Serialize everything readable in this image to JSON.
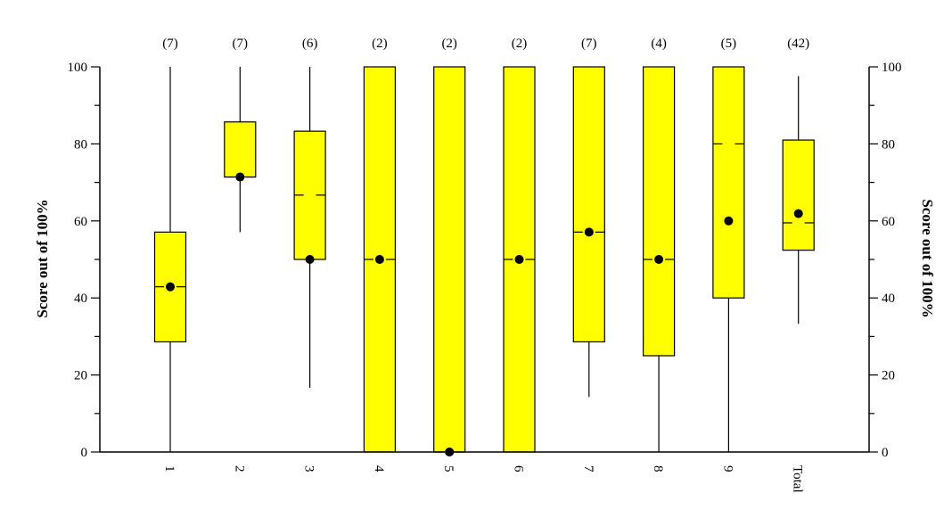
{
  "chart_data": {
    "type": "boxplot",
    "title": "",
    "xlabel": "",
    "ylabel": "Score out of 100%",
    "ylabel_right": "Score out of 100%",
    "ylim": [
      0,
      100
    ],
    "yticks": [
      0,
      20,
      40,
      60,
      80,
      100
    ],
    "grid": false,
    "box_color": "#ffff00",
    "categories": [
      "1",
      "2",
      "3",
      "4",
      "5",
      "6",
      "7",
      "8",
      "9",
      "Total"
    ],
    "counts": [
      "(7)",
      "(7)",
      "(6)",
      "(2)",
      "(2)",
      "(2)",
      "(7)",
      "(4)",
      "(5)",
      "(42)"
    ],
    "boxes": [
      {
        "category": "1",
        "min": 0,
        "q1": 28.6,
        "median": 42.9,
        "q3": 57.1,
        "max": 100,
        "mean": 42.9
      },
      {
        "category": "2",
        "min": 57.1,
        "q1": 71.4,
        "median": 71.4,
        "q3": 85.7,
        "max": 100,
        "mean": 71.4
      },
      {
        "category": "3",
        "min": 16.7,
        "q1": 50,
        "median": 66.7,
        "q3": 83.3,
        "max": 100,
        "mean": 50
      },
      {
        "category": "4",
        "min": 0,
        "q1": 0,
        "median": 50,
        "q3": 100,
        "max": 100,
        "mean": 50
      },
      {
        "category": "5",
        "min": 0,
        "q1": 0,
        "median": 0,
        "q3": 100,
        "max": 100,
        "mean": 0
      },
      {
        "category": "6",
        "min": 0,
        "q1": 0,
        "median": 50,
        "q3": 100,
        "max": 100,
        "mean": 50
      },
      {
        "category": "7",
        "min": 14.3,
        "q1": 28.6,
        "median": 57.1,
        "q3": 100,
        "max": 100,
        "mean": 57.1
      },
      {
        "category": "8",
        "min": 0,
        "q1": 25,
        "median": 50,
        "q3": 100,
        "max": 100,
        "mean": 50
      },
      {
        "category": "9",
        "min": 0,
        "q1": 40,
        "median": 80,
        "q3": 100,
        "max": 100,
        "mean": 60
      },
      {
        "category": "Total",
        "min": 33.3,
        "q1": 52.4,
        "median": 59.5,
        "q3": 81,
        "max": 97.6,
        "mean": 61.9
      }
    ]
  }
}
